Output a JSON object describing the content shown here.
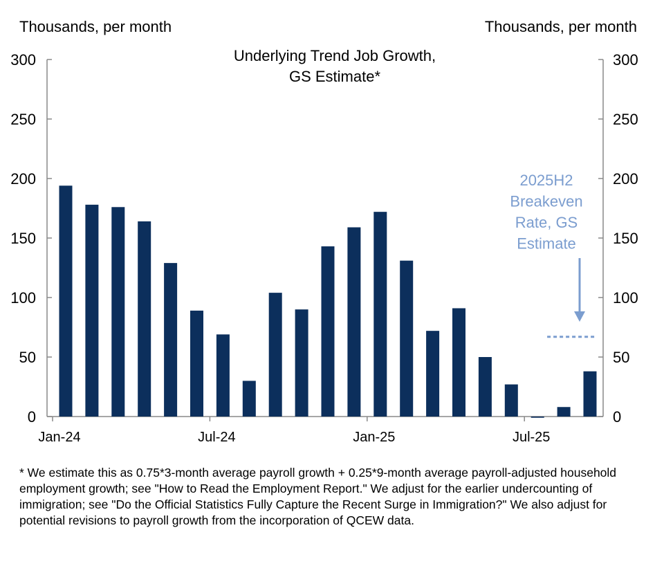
{
  "chart_data": {
    "type": "bar",
    "title": [
      "Underlying Trend Job Growth,",
      "GS Estimate*"
    ],
    "ylabel_left": "Thousands, per month",
    "ylabel_right": "Thousands, per month",
    "ylim": [
      0,
      300
    ],
    "yticks": [
      0,
      50,
      100,
      150,
      200,
      250,
      300
    ],
    "xtick_labels": [
      {
        "label": "Jan-24",
        "index": 0
      },
      {
        "label": "Jul-24",
        "index": 6
      },
      {
        "label": "Jan-25",
        "index": 12
      },
      {
        "label": "Jul-25",
        "index": 18
      }
    ],
    "categories": [
      "Jan-24",
      "Feb-24",
      "Mar-24",
      "Apr-24",
      "May-24",
      "Jun-24",
      "Jul-24",
      "Aug-24",
      "Sep-24",
      "Oct-24",
      "Nov-24",
      "Dec-24",
      "Jan-25",
      "Feb-25",
      "Mar-25",
      "Apr-25",
      "May-25",
      "Jun-25",
      "Jul-25",
      "Aug-25",
      "Sep-25"
    ],
    "values": [
      194,
      178,
      176,
      164,
      129,
      89,
      69,
      30,
      104,
      90,
      143,
      159,
      172,
      131,
      72,
      91,
      50,
      27,
      -1,
      8,
      38
    ],
    "bar_color": "#0c2f5c",
    "breakeven": {
      "value": 67,
      "from_index": 19,
      "to_index": 20,
      "color": "#7b9dcf",
      "label": [
        "2025H2",
        "Breakeven",
        "Rate, GS",
        "Estimate"
      ]
    },
    "grid": false
  },
  "footnote": "* We estimate this as 0.75*3-month average payroll growth + 0.25*9-month average payroll-adjusted household employment growth; see \"How to Read the Employment Report.\" We adjust for the earlier undercounting of immigration; see \"Do the Official Statistics Fully Capture the Recent Surge in Immigration?\" We also adjust for potential revisions to payroll growth from the incorporation of QCEW data."
}
